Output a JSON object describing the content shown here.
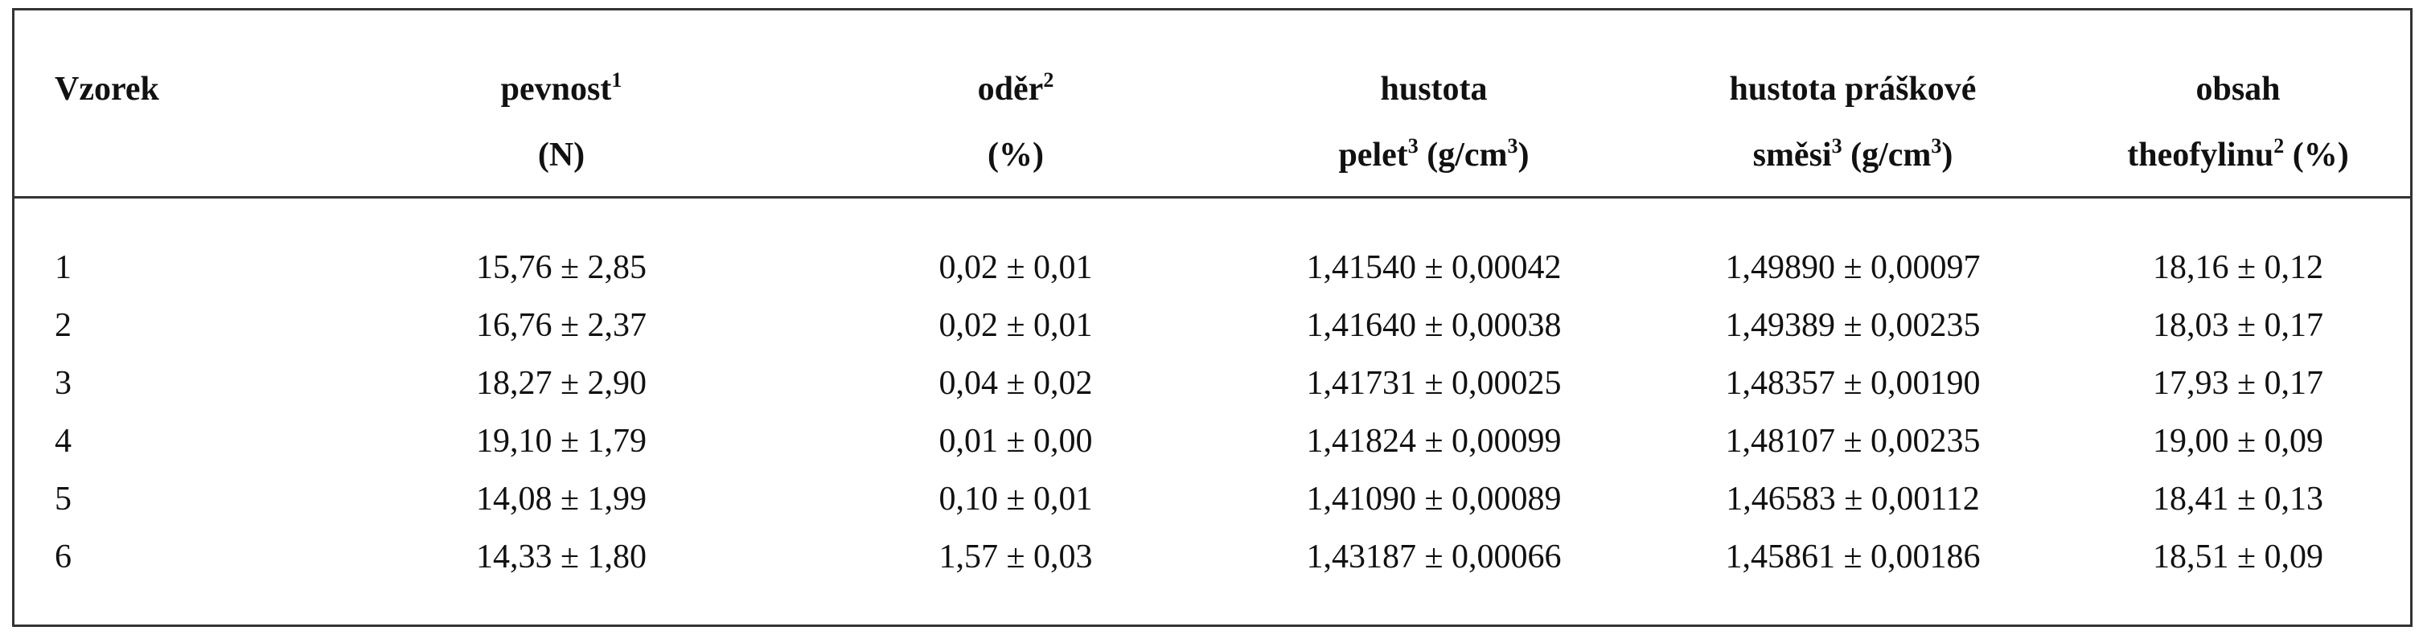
{
  "table": {
    "header": [
      [
        [
          {
            "text": "Vzorek"
          }
        ]
      ],
      [
        [
          {
            "text": "pevnost"
          },
          {
            "sup": "1"
          }
        ],
        [
          {
            "text": "(N)"
          }
        ]
      ],
      [
        [
          {
            "text": "oděr"
          },
          {
            "sup": "2"
          }
        ],
        [
          {
            "text": "(%)"
          }
        ]
      ],
      [
        [
          {
            "text": "hustota"
          }
        ],
        [
          {
            "text": "pelet"
          },
          {
            "sup": "3"
          },
          {
            "text": " (g/cm"
          },
          {
            "sup": "3"
          },
          {
            "text": ")"
          }
        ]
      ],
      [
        [
          {
            "text": "hustota práškové"
          }
        ],
        [
          {
            "text": "směsi"
          },
          {
            "sup": "3"
          },
          {
            "text": " (g/cm"
          },
          {
            "sup": "3"
          },
          {
            "text": ")"
          }
        ]
      ],
      [
        [
          {
            "text": "obsah"
          }
        ],
        [
          {
            "text": "theofylinu"
          },
          {
            "sup": "2"
          },
          {
            "text": " (%)"
          }
        ]
      ]
    ],
    "rows": [
      [
        "1",
        "15,76 ± 2,85",
        "0,02 ± 0,01",
        "1,41540 ± 0,00042",
        "1,49890 ± 0,00097",
        "18,16 ± 0,12"
      ],
      [
        "2",
        "16,76 ± 2,37",
        "0,02 ± 0,01",
        "1,41640 ± 0,00038",
        "1,49389 ± 0,00235",
        "18,03 ± 0,17"
      ],
      [
        "3",
        "18,27 ± 2,90",
        "0,04 ± 0,02",
        "1,41731 ± 0,00025",
        "1,48357 ± 0,00190",
        "17,93 ± 0,17"
      ],
      [
        "4",
        "19,10 ± 1,79",
        "0,01 ± 0,00",
        "1,41824 ± 0,00099",
        "1,48107 ± 0,00235",
        "19,00 ± 0,09"
      ],
      [
        "5",
        "14,08 ± 1,99",
        "0,10 ± 0,01",
        "1,41090 ± 0,00089",
        "1,46583 ± 0,00112",
        "18,41 ± 0,13"
      ],
      [
        "6",
        "14,33 ± 1,80",
        "1,57 ± 0,03",
        "1,43187 ± 0,00066",
        "1,45861 ± 0,00186",
        "18,51 ± 0,09"
      ]
    ]
  }
}
